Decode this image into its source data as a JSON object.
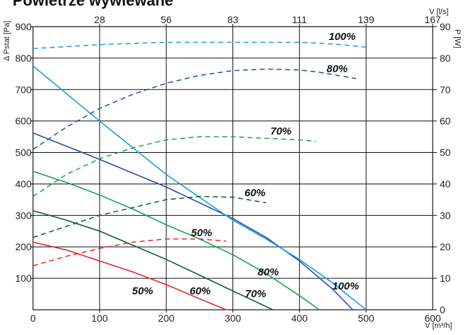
{
  "chart_data": {
    "type": "line",
    "title": "Powietrze wywiewane",
    "xlabel": "V [m³/h]",
    "ylabel": "Δ Pstat [Pa]",
    "x2label": "V [l/s]",
    "y2label": "P [W]",
    "xlim": [
      0,
      600
    ],
    "ylim": [
      0,
      900
    ],
    "y2lim": [
      0,
      90
    ],
    "x_ticks": [
      "0",
      "100",
      "200",
      "300",
      "400",
      "500",
      "600"
    ],
    "y_ticks": [
      "100",
      "200",
      "300",
      "400",
      "500",
      "600",
      "700",
      "800",
      "900"
    ],
    "x2_ticks": [
      "28",
      "56",
      "83",
      "111",
      "139",
      "167"
    ],
    "y2_ticks": [
      "0",
      "10",
      "20",
      "30",
      "40",
      "50",
      "60",
      "70",
      "80",
      "90"
    ],
    "grid": true,
    "colors": {
      "50": "#e8232a",
      "60": "#0d5c2c",
      "70": "#14a64a",
      "80": "#1f4ea8",
      "100": "#1a9be0"
    },
    "pressure_series": [
      {
        "name": "50%",
        "x": [
          0,
          50,
          100,
          150,
          200,
          250,
          290
        ],
        "y": [
          215,
          190,
          155,
          120,
          80,
          35,
          0
        ]
      },
      {
        "name": "60%",
        "x": [
          0,
          50,
          100,
          150,
          200,
          250,
          300,
          360
        ],
        "y": [
          315,
          285,
          250,
          205,
          160,
          110,
          60,
          0
        ]
      },
      {
        "name": "70%",
        "x": [
          0,
          50,
          100,
          150,
          200,
          250,
          300,
          350,
          400,
          430
        ],
        "y": [
          440,
          405,
          365,
          320,
          270,
          225,
          175,
          115,
          45,
          0
        ]
      },
      {
        "name": "80%",
        "x": [
          0,
          100,
          200,
          300,
          350,
          400,
          450,
          480
        ],
        "y": [
          562,
          478,
          390,
          290,
          230,
          155,
          65,
          0
        ]
      },
      {
        "name": "100%",
        "x": [
          0,
          100,
          200,
          300,
          350,
          400,
          450,
          500
        ],
        "y": [
          775,
          600,
          430,
          285,
          225,
          160,
          85,
          0
        ]
      }
    ],
    "power_series": [
      {
        "name": "50%",
        "x": [
          0,
          50,
          100,
          150,
          200,
          250,
          290
        ],
        "y": [
          14,
          17,
          19.5,
          21.5,
          22.5,
          22.5,
          21.8
        ]
      },
      {
        "name": "60%",
        "x": [
          0,
          50,
          100,
          150,
          200,
          250,
          300,
          350
        ],
        "y": [
          23,
          26.5,
          30,
          32.5,
          35,
          36,
          35.8,
          34
        ]
      },
      {
        "name": "70%",
        "x": [
          0,
          50,
          100,
          150,
          200,
          250,
          300,
          350,
          400,
          425
        ],
        "y": [
          36,
          43,
          48,
          51.5,
          54,
          55,
          55,
          54.5,
          54,
          53.5
        ]
      },
      {
        "name": "80%",
        "x": [
          0,
          50,
          100,
          150,
          200,
          250,
          300,
          350,
          400,
          430,
          485
        ],
        "y": [
          51,
          58,
          64,
          68.5,
          72,
          74.5,
          76,
          76.5,
          76.2,
          75.5,
          73.5
        ]
      },
      {
        "name": "100%",
        "x": [
          0,
          100,
          200,
          300,
          400,
          450,
          500
        ],
        "y": [
          83,
          84.3,
          85,
          85,
          85,
          84.5,
          83.5
        ]
      }
    ],
    "labels": {
      "pressure": [
        "50%",
        "60%",
        "70%",
        "80%",
        "100%"
      ],
      "power": [
        "50%",
        "60%",
        "70%",
        "80%",
        "100%"
      ]
    }
  }
}
